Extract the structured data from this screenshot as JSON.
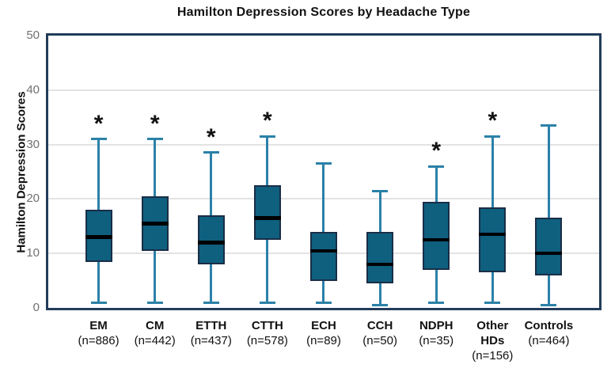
{
  "chart_data": {
    "type": "boxplot",
    "title": "Hamilton Depression Scores by Headache Type",
    "ylabel": "Hamilton Depression Scores",
    "xlabel": "",
    "ylim": [
      0,
      50
    ],
    "yticks": [
      0,
      10,
      20,
      30,
      40,
      50
    ],
    "grid": "horizontal",
    "legend": "none",
    "significance_marker": "*",
    "colors": {
      "box_fill": "#0f5f7f",
      "box_border": "#1a2e47",
      "whisker": "#2b81a8",
      "median": "#000000",
      "plot_border": "#223c5a",
      "gridline": "#e3e3e3",
      "tick_text": "#707070",
      "label_text": "#111111"
    },
    "categories": [
      {
        "label": "EM",
        "n_label": "(n=886)",
        "n": 886,
        "low": 1,
        "q1": 8.5,
        "median": 13,
        "q3": 18,
        "high": 31,
        "significant": true
      },
      {
        "label": "CM",
        "n_label": "(n=442)",
        "n": 442,
        "low": 1,
        "q1": 10.5,
        "median": 15.5,
        "q3": 20.5,
        "high": 31,
        "significant": true
      },
      {
        "label": "ETTH",
        "n_label": "(n=437)",
        "n": 437,
        "low": 1,
        "q1": 8,
        "median": 12,
        "q3": 17,
        "high": 28.5,
        "significant": true
      },
      {
        "label": "CTTH",
        "n_label": "(n=578)",
        "n": 578,
        "low": 1,
        "q1": 12.5,
        "median": 16.5,
        "q3": 22.5,
        "high": 31.5,
        "significant": true
      },
      {
        "label": "ECH",
        "n_label": "(n=89)",
        "n": 89,
        "low": 1,
        "q1": 5,
        "median": 10.5,
        "q3": 14,
        "high": 26.5,
        "significant": false
      },
      {
        "label": "CCH",
        "n_label": "(n=50)",
        "n": 50,
        "low": 0.5,
        "q1": 4.5,
        "median": 8,
        "q3": 14,
        "high": 21.5,
        "significant": false
      },
      {
        "label": "NDPH",
        "n_label": "(n=35)",
        "n": 35,
        "low": 1,
        "q1": 7,
        "median": 12.5,
        "q3": 19.5,
        "high": 26,
        "significant": true
      },
      {
        "label": "Other HDs",
        "n_label": "(n=156)",
        "n": 156,
        "low": 1,
        "q1": 6.5,
        "median": 13.5,
        "q3": 18.5,
        "high": 31.5,
        "significant": true
      },
      {
        "label": "Controls",
        "n_label": "(n=464)",
        "n": 464,
        "low": 0.5,
        "q1": 6,
        "median": 10,
        "q3": 16.5,
        "high": 33.5,
        "significant": false
      }
    ]
  }
}
